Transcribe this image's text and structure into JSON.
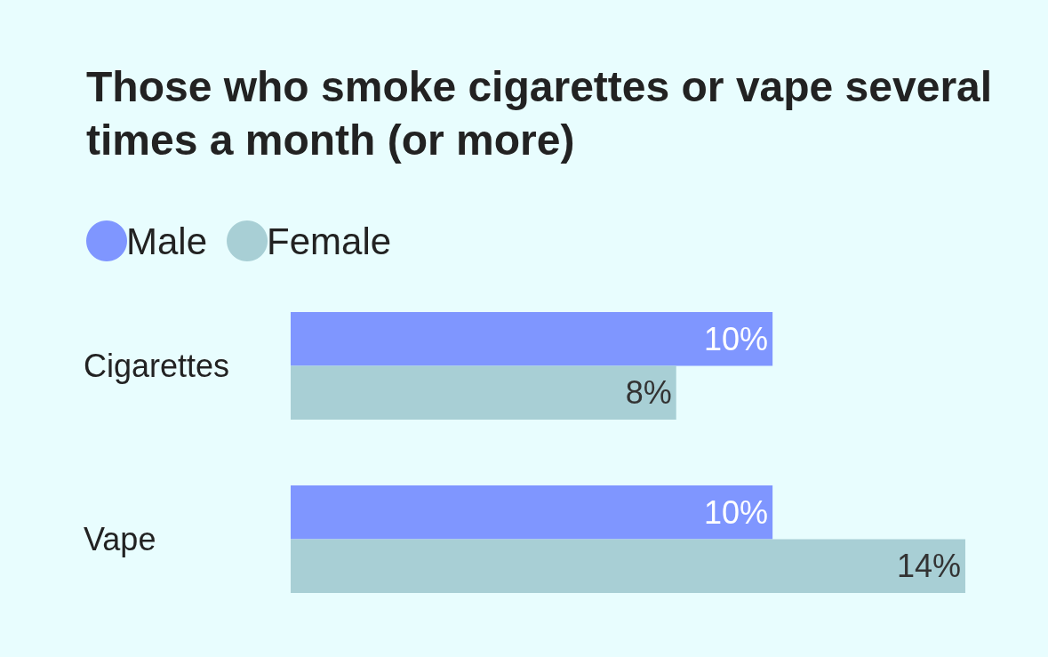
{
  "chart_data": {
    "type": "bar",
    "orientation": "horizontal",
    "title": "Those who smoke cigarettes or vape several times a month (or more)",
    "categories": [
      "Cigarettes",
      "Vape"
    ],
    "legend": "top left",
    "series": [
      {
        "name": "Male",
        "color": "#7f96ff",
        "values": [
          10,
          10
        ],
        "value_labels": [
          "10%",
          "10%"
        ]
      },
      {
        "name": "Female",
        "color": "#a8cfd5",
        "values": [
          8,
          14
        ],
        "value_labels": [
          "8%",
          "14%"
        ]
      }
    ]
  }
}
